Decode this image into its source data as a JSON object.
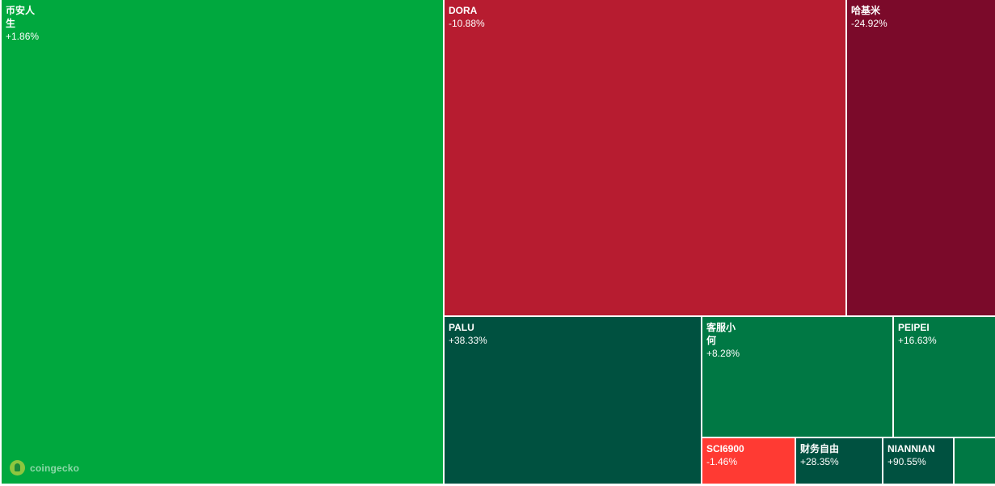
{
  "tiles": [
    {
      "id": "t1",
      "name": "币安人生",
      "change": "+1.86%",
      "color": "#00a83e"
    },
    {
      "id": "t2",
      "name": "DORA",
      "change": "-10.88%",
      "color": "#b71c30"
    },
    {
      "id": "t3",
      "name": "哈基米",
      "change": "-24.92%",
      "color": "#7b0a2a"
    },
    {
      "id": "t4",
      "name": "PALU",
      "change": "+38.33%",
      "color": "#005140"
    },
    {
      "id": "t5",
      "name": "客服小何",
      "change": "+8.28%",
      "color": "#007844"
    },
    {
      "id": "t6",
      "name": "PEIPEI",
      "change": "+16.63%",
      "color": "#007844"
    },
    {
      "id": "t7",
      "name": "SCI6900",
      "change": "-1.46%",
      "color": "#ff3a33"
    },
    {
      "id": "t8",
      "name": "财务自由",
      "change": "+28.35%",
      "color": "#005140"
    },
    {
      "id": "t9",
      "name": "NIANNIAN",
      "change": "+90.55%",
      "color": "#005140"
    },
    {
      "id": "t10",
      "name": "",
      "change": "",
      "color": "#007844"
    }
  ],
  "watermark": {
    "text": "coingecko",
    "icon": "coingecko-logo-icon"
  }
}
